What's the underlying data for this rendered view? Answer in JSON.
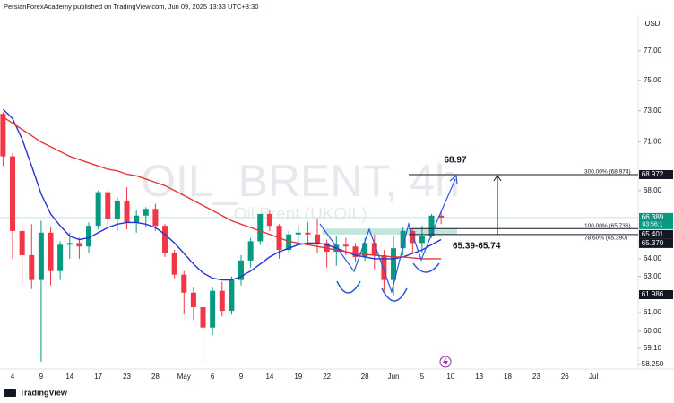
{
  "chart_data": {
    "type": "candlestick",
    "header": "PersianForexAcademy published on TradingView.com, Jun 09, 2025 13:33 UTC+3:30",
    "currency": "USD",
    "watermark": "OIL_BRENT, 4h",
    "watermark_subtitle": "Oil Brent (UKOIL)",
    "brand": "TradingView",
    "log_scale": true,
    "ylim": [
      58.02,
      79.48
    ],
    "yticks": [
      {
        "value": 77,
        "label": "77.00"
      },
      {
        "value": 75,
        "label": "75.00"
      },
      {
        "value": 73,
        "label": "73.00"
      },
      {
        "value": 71,
        "label": "71.00"
      },
      {
        "value": 68,
        "label": "68.00"
      },
      {
        "value": 64,
        "label": "64.00"
      },
      {
        "value": 63,
        "label": "63.00"
      },
      {
        "value": 61,
        "label": "61.00"
      },
      {
        "value": 60,
        "label": "60.00"
      },
      {
        "value": 59.1,
        "label": "59.10"
      },
      {
        "value": 58.25,
        "label": "58.250"
      }
    ],
    "categories": [
      "Apr 3",
      "Apr 4",
      "Apr 7",
      "Apr 8",
      "Apr 9",
      "Apr 10",
      "Apr 11",
      "Apr 14",
      "Apr 15",
      "Apr 16",
      "Apr 17",
      "Apr 21",
      "Apr 22",
      "Apr 23",
      "Apr 24",
      "Apr 25",
      "Apr 28",
      "Apr 29",
      "Apr 30",
      "May 1",
      "May 2",
      "May 5",
      "May 6",
      "May 7",
      "May 8",
      "May 9",
      "May 12",
      "May 13",
      "May 14",
      "May 15",
      "May 16",
      "May 19",
      "May 20",
      "May 21",
      "May 22",
      "May 23",
      "May 26",
      "May 27",
      "May 28",
      "May 29",
      "May 30",
      "Jun 2",
      "Jun 3",
      "Jun 4",
      "Jun 5",
      "Jun 6",
      "Jun 9",
      "Jun 10",
      "Jun 11",
      "Jun 12",
      "Jun 13",
      "Jun 16",
      "Jun 17",
      "Jun 18",
      "Jun 19",
      "Jun 20",
      "Jun 23",
      "Jun 24",
      "Jun 25",
      "Jun 26",
      "Jun 27",
      "Jun 30",
      "Jul 1"
    ],
    "xticks": [
      {
        "value": "Apr 4",
        "label": "4"
      },
      {
        "value": "Apr 9",
        "label": "9"
      },
      {
        "value": "Apr 14",
        "label": "14"
      },
      {
        "value": "Apr 17",
        "label": "17"
      },
      {
        "value": "Apr 23",
        "label": "23"
      },
      {
        "value": "Apr 28",
        "label": "28"
      },
      {
        "value": "May 1",
        "label": "May"
      },
      {
        "value": "May 6",
        "label": "6"
      },
      {
        "value": "May 9",
        "label": "9"
      },
      {
        "value": "May 14",
        "label": "14"
      },
      {
        "value": "May 19",
        "label": "19"
      },
      {
        "value": "May 22",
        "label": "22"
      },
      {
        "value": "May 28",
        "label": "28"
      },
      {
        "value": "Jun 2",
        "label": "Jun"
      },
      {
        "value": "Jun 5",
        "label": "5"
      },
      {
        "value": "Jun 10",
        "label": "10"
      },
      {
        "value": "Jun 13",
        "label": "13"
      },
      {
        "value": "Jun 18",
        "label": "18"
      },
      {
        "value": "Jun 23",
        "label": "23"
      },
      {
        "value": "Jun 26",
        "label": "26"
      },
      {
        "value": "Jul 1",
        "label": "Jul"
      }
    ],
    "up_color": "#089981",
    "down_color": "#f23645",
    "open": [
      72.8,
      70.1,
      65.6,
      64.2,
      62.8,
      65.5,
      63.3,
      64.8,
      64.9,
      64.7,
      65.9,
      67.9,
      66.3,
      67.4,
      66.1,
      66.5,
      66.9,
      65.9,
      64.3,
      63.1,
      62.1,
      61.3,
      60.2,
      62.2,
      61.1,
      62.8,
      63.9,
      65.0,
      66.6,
      65.9,
      64.5,
      65.4,
      65.5,
      65.4,
      64.9,
      64.4,
      64.8,
      64.7,
      64.1,
      64.9,
      64.2,
      62.8,
      64.6,
      65.6,
      64.9,
      65.3,
      66.5,
      null,
      null,
      null,
      null,
      null,
      null,
      null,
      null,
      null,
      null,
      null,
      null,
      null,
      null,
      null,
      null
    ],
    "high": [
      72.9,
      70.3,
      66.1,
      66.0,
      66.2,
      65.8,
      65.0,
      65.5,
      65.2,
      66.1,
      68.0,
      68.0,
      67.6,
      68.2,
      66.8,
      67.0,
      67.2,
      66.0,
      64.5,
      63.3,
      62.4,
      61.4,
      62.4,
      62.7,
      63.0,
      64.2,
      65.2,
      66.6,
      66.8,
      66.0,
      65.6,
      65.9,
      66.1,
      66.3,
      65.1,
      65.3,
      65.2,
      64.9,
      65.2,
      65.4,
      64.5,
      65.3,
      65.8,
      65.7,
      65.9,
      66.6,
      66.8,
      null,
      null,
      null,
      null,
      null,
      null,
      null,
      null,
      null,
      null,
      null,
      null,
      null,
      null,
      null,
      null
    ],
    "low": [
      69.5,
      64.0,
      62.5,
      62.3,
      58.4,
      62.5,
      62.8,
      64.0,
      64.0,
      64.3,
      65.7,
      65.9,
      65.6,
      65.7,
      65.5,
      65.8,
      65.6,
      64.1,
      62.9,
      60.9,
      60.6,
      58.4,
      59.8,
      60.8,
      60.9,
      62.5,
      63.5,
      64.8,
      65.6,
      64.0,
      64.3,
      64.8,
      64.8,
      64.3,
      63.5,
      63.6,
      64.2,
      63.8,
      63.9,
      63.4,
      62.2,
      61.9,
      64.2,
      64.3,
      64.3,
      65.2,
      66.0,
      null,
      null,
      null,
      null,
      null,
      null,
      null,
      null,
      null,
      null,
      null,
      null,
      null,
      null,
      null,
      null
    ],
    "close": [
      70.1,
      65.6,
      64.2,
      62.8,
      65.5,
      63.3,
      64.8,
      64.9,
      64.7,
      65.9,
      67.9,
      66.3,
      67.4,
      66.1,
      66.5,
      66.9,
      65.9,
      64.3,
      63.1,
      62.1,
      61.3,
      60.2,
      62.2,
      61.1,
      62.8,
      63.9,
      65.0,
      66.6,
      65.9,
      64.5,
      65.4,
      65.5,
      65.4,
      64.9,
      64.4,
      64.8,
      64.7,
      64.1,
      64.9,
      64.2,
      62.8,
      64.6,
      65.6,
      64.9,
      65.3,
      66.5,
      66.389,
      null,
      null,
      null,
      null,
      null,
      null,
      null,
      null,
      null,
      null,
      null,
      null,
      null,
      null,
      null,
      null
    ],
    "moving_averages": [
      {
        "color": "#2632d4",
        "values": [
          73.1,
          72.5,
          71.2,
          69.5,
          67.8,
          66.6,
          65.9,
          65.3,
          65.1,
          65.2,
          65.5,
          65.8,
          66.0,
          66.1,
          66.1,
          66.0,
          65.8,
          65.4,
          64.9,
          64.3,
          63.7,
          63.2,
          62.9,
          62.8,
          62.8,
          63.0,
          63.3,
          63.7,
          64.1,
          64.4,
          64.6,
          64.8,
          64.9,
          64.9,
          64.8,
          64.6,
          64.4,
          64.2,
          64.1,
          64.0,
          64.0,
          64.0,
          64.1,
          64.3,
          64.5,
          64.8,
          65.1,
          null,
          null,
          null,
          null,
          null,
          null,
          null,
          null,
          null,
          null,
          null,
          null,
          null,
          null,
          null,
          null
        ]
      },
      {
        "color": "#e53935",
        "values": [
          72.6,
          72.2,
          71.8,
          71.4,
          71.0,
          70.7,
          70.4,
          70.1,
          69.9,
          69.7,
          69.5,
          69.3,
          69.2,
          69.0,
          68.9,
          68.7,
          68.5,
          68.3,
          68.0,
          67.7,
          67.4,
          67.1,
          66.8,
          66.5,
          66.2,
          66.0,
          65.8,
          65.6,
          65.4,
          65.2,
          65.0,
          64.9,
          64.8,
          64.7,
          64.6,
          64.5,
          64.4,
          64.3,
          64.25,
          64.2,
          64.15,
          64.1,
          64.1,
          64.05,
          64.0,
          64.0,
          64.0,
          null,
          null,
          null,
          null,
          null,
          null,
          null,
          null,
          null,
          null,
          null,
          null,
          null,
          null,
          null,
          null
        ]
      }
    ],
    "fib_levels": [
      {
        "label": "300.00% (68.974)",
        "value": 68.974
      },
      {
        "label": "100.00% (65.736)",
        "value": 65.736
      },
      {
        "label": "78.60% (65.390)",
        "value": 65.39
      }
    ],
    "target": {
      "label": "68.97",
      "value": 68.97
    },
    "zone": {
      "label": "65.39-65.74",
      "low": 65.39,
      "high": 65.74
    },
    "price_labels": [
      {
        "value": 68.972,
        "label": "68.972",
        "color": "#131722"
      },
      {
        "value": 66.389,
        "label": "66.389",
        "color": "#089981"
      },
      {
        "value": 65.401,
        "label": "65.401",
        "color": "#131722"
      },
      {
        "value": 65.37,
        "label": "65.370",
        "color": "#131722"
      },
      {
        "value": 61.986,
        "label": "61.986",
        "color": "#131722"
      }
    ],
    "countdown": "03:56:1"
  }
}
